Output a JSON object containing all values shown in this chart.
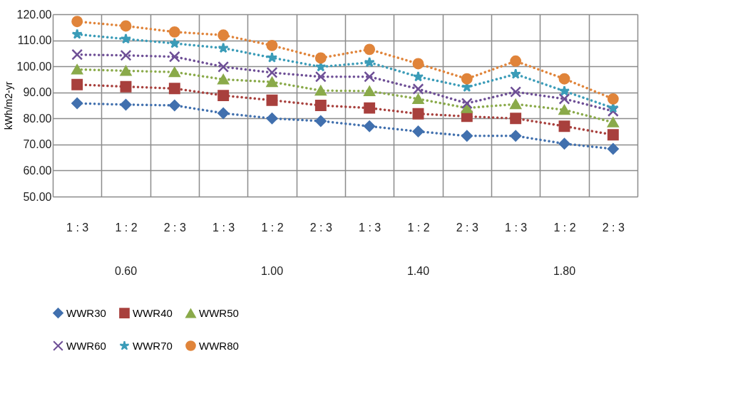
{
  "chart_data": {
    "type": "line",
    "ylabel": "kWh/m2-yr",
    "categories": [
      "1 : 3",
      "1 : 2",
      "2 : 3",
      "1 : 3",
      "1 : 2",
      "2 : 3",
      "1 : 3",
      "1 : 2",
      "2 : 3",
      "1 : 3",
      "1 : 2",
      "2 : 3"
    ],
    "annotations": [
      "0.60",
      "1.00",
      "1.40",
      "1.80"
    ],
    "ylim": [
      50,
      120
    ],
    "yticks": [
      {
        "value": 50,
        "label": "50.00"
      },
      {
        "value": 60,
        "label": "60.00"
      },
      {
        "value": 70,
        "label": "70.00"
      },
      {
        "value": 80,
        "label": "80.00"
      },
      {
        "value": 90,
        "label": "90.00"
      },
      {
        "value": 100,
        "label": "100.00"
      },
      {
        "value": 110,
        "label": "110.00"
      },
      {
        "value": 120,
        "label": "120.00"
      }
    ],
    "grid": true,
    "legend": "bottom",
    "line_style": "dotted",
    "series": [
      {
        "name": "WWR30",
        "color": "#4170ae",
        "marker": "diamond",
        "values": [
          85.8,
          85.3,
          85,
          82,
          80,
          79,
          77,
          75,
          73.3,
          73.3,
          70.3,
          68.3
        ]
      },
      {
        "name": "WWR40",
        "color": "#a8403d",
        "marker": "square",
        "values": [
          93,
          92.2,
          91.5,
          88.8,
          87,
          85,
          84,
          81.8,
          80.8,
          80,
          77,
          73.7
        ]
      },
      {
        "name": "WWR50",
        "color": "#8aaa4a",
        "marker": "triangle",
        "values": [
          98.8,
          98.3,
          97.8,
          95,
          94,
          90.7,
          90.5,
          87.5,
          84,
          85.5,
          83.3,
          78.5
        ]
      },
      {
        "name": "WWR60",
        "color": "#6e4f96",
        "marker": "cross",
        "values": [
          104.5,
          104.2,
          103.7,
          99.8,
          97.6,
          96,
          96,
          91.3,
          85.8,
          90.2,
          87.5,
          82.8
        ]
      },
      {
        "name": "WWR70",
        "color": "#3b9cb8",
        "marker": "star",
        "values": [
          112.3,
          110.5,
          108.8,
          107,
          103.3,
          99.8,
          101.5,
          96,
          92,
          97,
          90.5,
          84
        ]
      },
      {
        "name": "WWR80",
        "color": "#e0843a",
        "marker": "circle",
        "values": [
          117.2,
          115.5,
          113.2,
          112,
          108,
          103.2,
          106.5,
          101,
          95.2,
          102,
          95.2,
          87.5
        ]
      }
    ]
  }
}
